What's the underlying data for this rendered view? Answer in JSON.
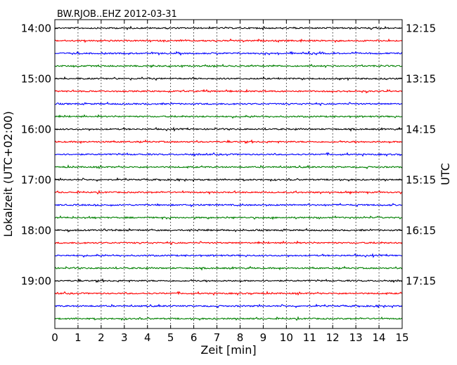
{
  "chart_data": {
    "type": "line",
    "title": "BW.RJOB..EHZ 2012-03-31",
    "xlabel": "Zeit  [min]",
    "ylabel_left": "Lokalzeit (UTC+02:00)",
    "ylabel_right": "UTC",
    "xlim": [
      0,
      15
    ],
    "x_ticks": [
      "0",
      "1",
      "2",
      "3",
      "4",
      "5",
      "6",
      "7",
      "8",
      "9",
      "10",
      "11",
      "12",
      "13",
      "14",
      "15"
    ],
    "left_ticks": [
      "14:00",
      "15:00",
      "16:00",
      "17:00",
      "18:00",
      "19:00"
    ],
    "right_ticks": [
      "12:15",
      "13:15",
      "14:15",
      "15:15",
      "16:15",
      "17:15"
    ],
    "grid": true,
    "trace_colors": [
      "#000000",
      "#ff0000",
      "#0000ff",
      "#008000"
    ],
    "traces": [
      {
        "start": "14:00",
        "color": "#000000"
      },
      {
        "start": "14:15",
        "color": "#ff0000"
      },
      {
        "start": "14:30",
        "color": "#0000ff"
      },
      {
        "start": "14:45",
        "color": "#008000"
      },
      {
        "start": "15:00",
        "color": "#000000"
      },
      {
        "start": "15:15",
        "color": "#ff0000"
      },
      {
        "start": "15:30",
        "color": "#0000ff"
      },
      {
        "start": "15:45",
        "color": "#008000"
      },
      {
        "start": "16:00",
        "color": "#000000"
      },
      {
        "start": "16:15",
        "color": "#ff0000"
      },
      {
        "start": "16:30",
        "color": "#0000ff"
      },
      {
        "start": "16:45",
        "color": "#008000"
      },
      {
        "start": "17:00",
        "color": "#000000"
      },
      {
        "start": "17:15",
        "color": "#ff0000"
      },
      {
        "start": "17:30",
        "color": "#0000ff"
      },
      {
        "start": "17:45",
        "color": "#008000"
      },
      {
        "start": "18:00",
        "color": "#000000"
      },
      {
        "start": "18:15",
        "color": "#ff0000"
      },
      {
        "start": "18:30",
        "color": "#0000ff"
      },
      {
        "start": "18:45",
        "color": "#008000"
      },
      {
        "start": "19:00",
        "color": "#000000"
      },
      {
        "start": "19:15",
        "color": "#ff0000"
      },
      {
        "start": "19:30",
        "color": "#0000ff"
      },
      {
        "start": "19:45",
        "color": "#008000"
      }
    ]
  }
}
